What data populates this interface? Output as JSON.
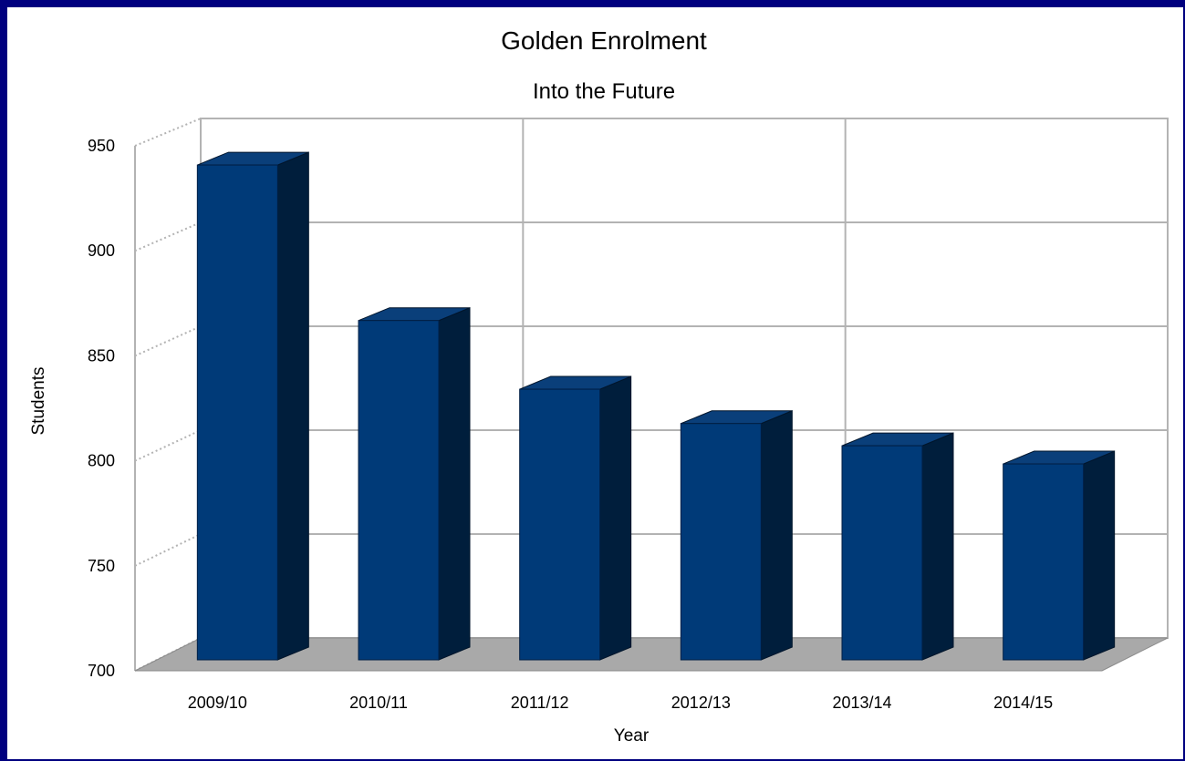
{
  "chart_data": {
    "type": "bar",
    "title": "Golden Enrolment",
    "subtitle": "Into the Future",
    "xlabel": "Year",
    "ylabel": "Students",
    "categories": [
      "2009/10",
      "2010/11",
      "2011/12",
      "2012/13",
      "2013/14",
      "2014/15"
    ],
    "values": [
      945,
      868,
      834,
      817,
      806,
      797
    ],
    "ylim": [
      700,
      950
    ],
    "yticks": [
      700,
      750,
      800,
      850,
      900,
      950
    ],
    "grid": true,
    "three_d": true
  },
  "colors": {
    "border": "#00007f",
    "bar_front": "#003a78",
    "bar_side": "#001e3c",
    "bar_top": "#0a3f7a",
    "floor": "#a9a9a9",
    "grid": "#b3b3b3"
  }
}
